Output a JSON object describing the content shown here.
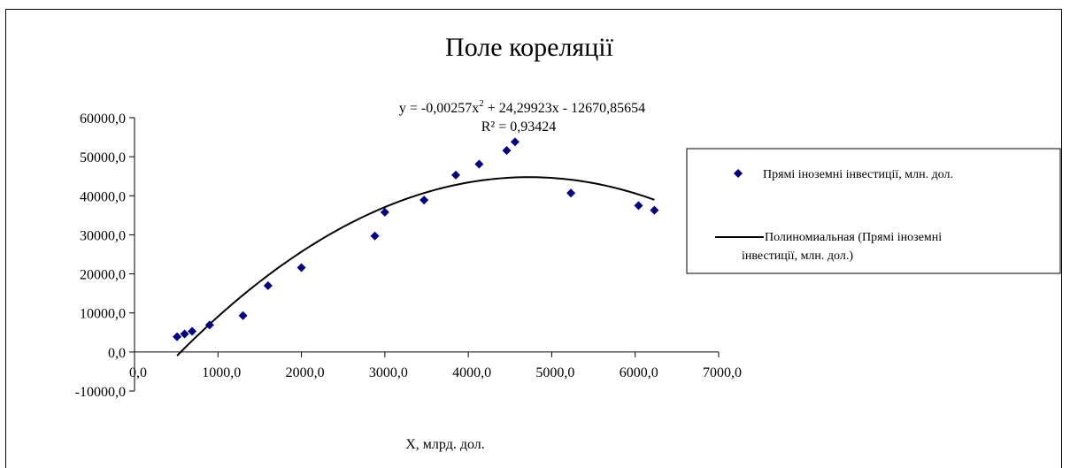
{
  "chart_data": {
    "type": "scatter",
    "title": "Поле кореляції",
    "xlabel": "X, млрд. дол.",
    "ylabel": "",
    "xlim": [
      0,
      7000
    ],
    "ylim": [
      -10000,
      60000
    ],
    "x_ticks": [
      0,
      1000,
      2000,
      3000,
      4000,
      5000,
      6000,
      7000
    ],
    "x_tick_labels": [
      "0,0",
      "1000,0",
      "2000,0",
      "3000,0",
      "4000,0",
      "5000,0",
      "6000,0",
      "7000,0"
    ],
    "y_ticks": [
      -10000,
      0,
      10000,
      20000,
      30000,
      40000,
      50000,
      60000
    ],
    "y_tick_labels": [
      "-10000,0",
      "0,0",
      "10000,0",
      "20000,0",
      "30000,0",
      "40000,0",
      "50000,0",
      "60000,0"
    ],
    "grid": false,
    "legend_position": "right",
    "series": [
      {
        "name": "Прямі іноземні інвестиції, млн. дол.",
        "kind": "scatter",
        "marker": "diamond",
        "color": "#000080",
        "points": [
          [
            510,
            3900
          ],
          [
            600,
            4600
          ],
          [
            690,
            5300
          ],
          [
            900,
            6900
          ],
          [
            1300,
            9300
          ],
          [
            1600,
            17000
          ],
          [
            2000,
            21600
          ],
          [
            2880,
            29700
          ],
          [
            3000,
            35800
          ],
          [
            3470,
            38900
          ],
          [
            3850,
            45300
          ],
          [
            4130,
            48100
          ],
          [
            4460,
            51600
          ],
          [
            4560,
            53800
          ],
          [
            5230,
            40700
          ],
          [
            6040,
            37500
          ],
          [
            6230,
            36300
          ]
        ]
      },
      {
        "name": "Полиномиальная (Прямі іноземні інвестиції, млн. дол.)",
        "kind": "trendline",
        "color": "#000000",
        "coefficients": {
          "a2": -0.00257,
          "a1": 24.29923,
          "a0": -12670.85654
        },
        "x_range": [
          510,
          6230
        ]
      }
    ],
    "annotations": {
      "equation_prefix": "y = -0,00257x",
      "equation_sup": "2",
      "equation_suffix": " + 24,29923x - 12670,85654",
      "r_squared": "R² = 0,93424"
    }
  },
  "legend": {
    "items": [
      {
        "label_lines": [
          "Прямі іноземні інвестиції, млн. дол."
        ]
      },
      {
        "label_lines": [
          "Полиномиальная (Прямі іноземні",
          "інвестиції, млн. дол.)"
        ]
      }
    ]
  }
}
